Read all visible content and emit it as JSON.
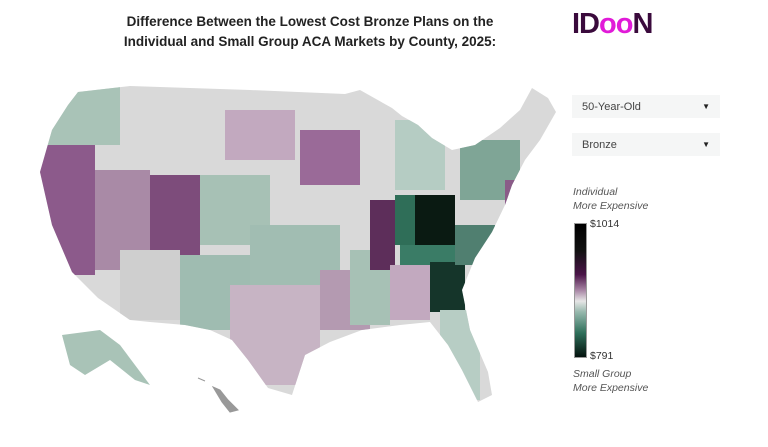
{
  "title_line1": "Difference Between the Lowest Cost Bronze Plans on the",
  "title_line2": "Individual and Small Group ACA Markets by County, 2025:",
  "logo": {
    "left": "ID",
    "mid": "oo",
    "right": "N"
  },
  "age_select": {
    "value": "50-Year-Old"
  },
  "metal_select": {
    "value": "Bronze"
  },
  "legend": {
    "top_line1": "Individual",
    "top_line2": "More Expensive",
    "max_label": "$1014",
    "min_label": "$791",
    "bottom_line1": "Small Group",
    "bottom_line2": "More Expensive"
  },
  "colors": {
    "high": "#000000",
    "purple": "#4a1448",
    "neutral": "#e6e6e6",
    "green": "#2e6f5a",
    "low": "#04120d"
  }
}
